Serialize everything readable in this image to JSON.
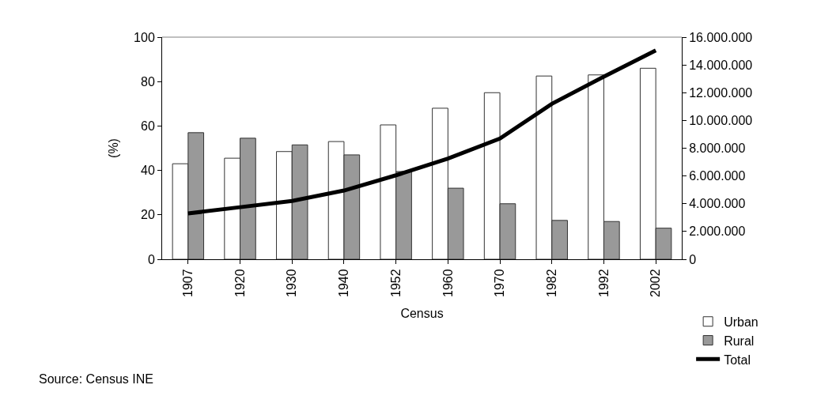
{
  "chart_data": {
    "type": "bar",
    "xlabel": "Census",
    "ylabel": "(%)",
    "categories": [
      "1907",
      "1920",
      "1930",
      "1940",
      "1952",
      "1960",
      "1970",
      "1982",
      "1992",
      "2002"
    ],
    "series": [
      {
        "name": "Urban",
        "color": "#ffffff",
        "values": [
          43,
          45.5,
          48.5,
          53,
          60.5,
          68,
          75,
          82.5,
          83,
          86
        ]
      },
      {
        "name": "Rural",
        "color": "#999999",
        "values": [
          57,
          54.5,
          51.5,
          47,
          39.5,
          32,
          25,
          17.5,
          17,
          14
        ]
      },
      {
        "name": "Total",
        "type": "line",
        "axis": "y2",
        "color": "#000000",
        "values": [
          3300000,
          3750000,
          4200000,
          4950000,
          6050000,
          7250000,
          8700000,
          11200000,
          13150000,
          15050000
        ]
      }
    ],
    "ylim": [
      0,
      100
    ],
    "yticks": [
      0,
      20,
      40,
      60,
      80,
      100
    ],
    "y2lim": [
      0,
      16000000
    ],
    "y2ticks": [
      {
        "value": 0,
        "label": "0"
      },
      {
        "value": 2000000,
        "label": "2.000.000"
      },
      {
        "value": 4000000,
        "label": "4.000.000"
      },
      {
        "value": 6000000,
        "label": "6.000.000"
      },
      {
        "value": 8000000,
        "label": "8.000.000"
      },
      {
        "value": 10000000,
        "label": "10.000.000"
      },
      {
        "value": 12000000,
        "label": "12.000.000"
      },
      {
        "value": 14000000,
        "label": "14.000.000"
      },
      {
        "value": 16000000,
        "label": "16.000.000"
      }
    ],
    "legend": "bottom right",
    "marker": "none",
    "line_style": "solid",
    "annotations": [
      "Source: Census INE"
    ]
  }
}
